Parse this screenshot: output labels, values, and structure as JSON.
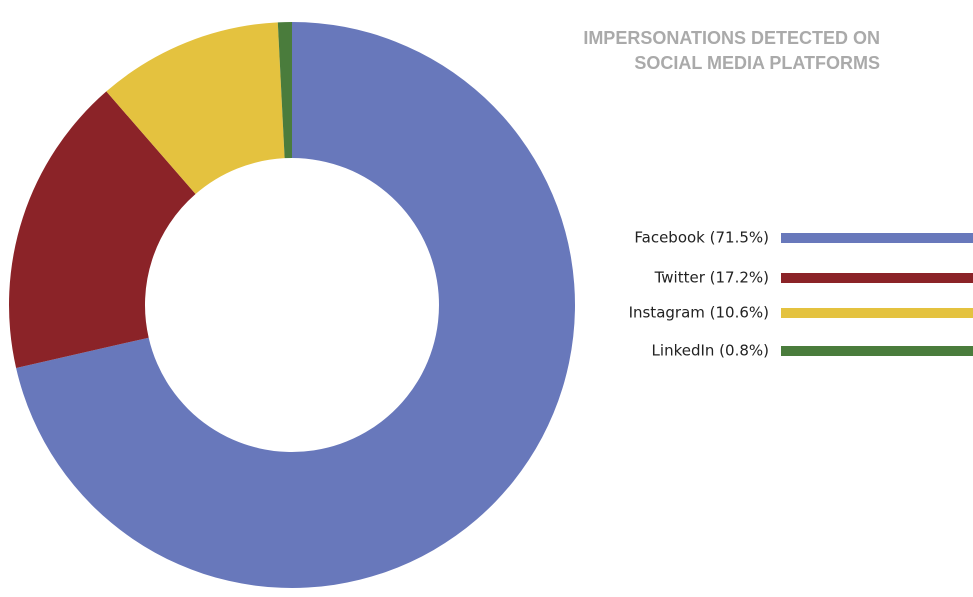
{
  "chart_data": {
    "type": "donut",
    "title": "IMPERSONATIONS DETECTED ON SOCIAL MEDIA PLATFORMS",
    "categories": [
      "Facebook (71.5%)",
      "Twitter (17.2%)",
      "Instagram (10.6%)",
      "LinkedIn (0.8%)"
    ],
    "values": [
      71.5,
      17.2,
      10.6,
      0.8
    ],
    "colors": [
      "#6878bb",
      "#8b2328",
      "#e4c23f",
      "#4a7c3c"
    ],
    "legend": "right"
  }
}
